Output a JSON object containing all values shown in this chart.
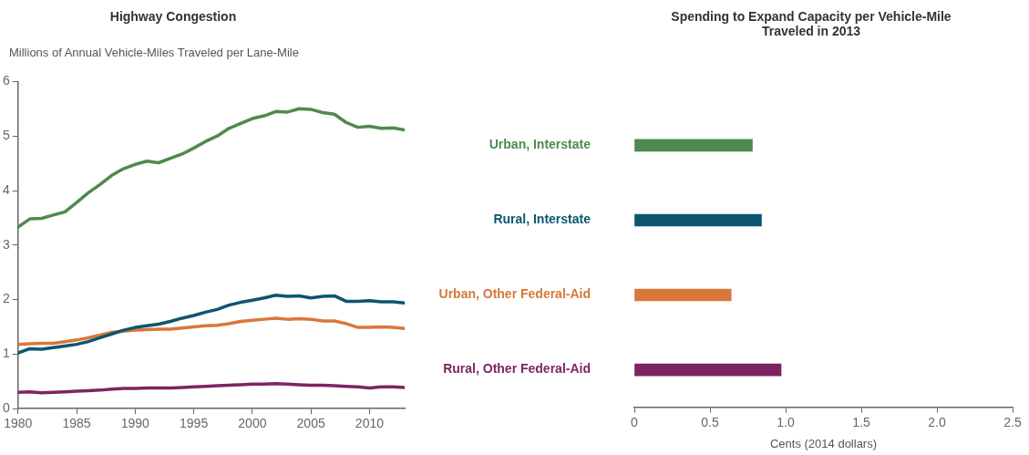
{
  "chart_data": [
    {
      "type": "line",
      "title": "Highway Congestion",
      "ylabel": "Millions of Annual Vehicle-Miles Traveled per Lane-Mile",
      "x": [
        1980,
        1981,
        1982,
        1983,
        1984,
        1985,
        1986,
        1987,
        1988,
        1989,
        1990,
        1991,
        1992,
        1993,
        1994,
        1995,
        1996,
        1997,
        1998,
        1999,
        2000,
        2001,
        2002,
        2003,
        2004,
        2005,
        2006,
        2007,
        2008,
        2009,
        2010,
        2011,
        2012,
        2013
      ],
      "series": [
        {
          "color": "#4e8a4e",
          "values": [
            3.33,
            3.48,
            3.49,
            3.55,
            3.61,
            3.78,
            3.96,
            4.11,
            4.28,
            4.4,
            4.48,
            4.54,
            4.51,
            4.59,
            4.67,
            4.78,
            4.9,
            5.0,
            5.14,
            5.23,
            5.32,
            5.37,
            5.45,
            5.44,
            5.5,
            5.49,
            5.43,
            5.4,
            5.25,
            5.16,
            5.18,
            5.14,
            5.15,
            5.11
          ]
        },
        {
          "color": "#0d5571",
          "values": [
            1.02,
            1.1,
            1.09,
            1.12,
            1.15,
            1.18,
            1.23,
            1.3,
            1.37,
            1.44,
            1.49,
            1.52,
            1.55,
            1.6,
            1.66,
            1.71,
            1.77,
            1.82,
            1.9,
            1.95,
            1.99,
            2.03,
            2.08,
            2.06,
            2.07,
            2.03,
            2.06,
            2.07,
            1.97,
            1.97,
            1.98,
            1.96,
            1.96,
            1.94
          ]
        },
        {
          "color": "#d9773a",
          "values": [
            1.18,
            1.19,
            1.2,
            1.2,
            1.23,
            1.26,
            1.3,
            1.35,
            1.4,
            1.42,
            1.44,
            1.45,
            1.46,
            1.46,
            1.48,
            1.5,
            1.52,
            1.53,
            1.56,
            1.6,
            1.62,
            1.64,
            1.66,
            1.64,
            1.65,
            1.64,
            1.61,
            1.61,
            1.56,
            1.49,
            1.49,
            1.5,
            1.49,
            1.47
          ]
        },
        {
          "color": "#7d2462",
          "values": [
            0.3,
            0.31,
            0.29,
            0.3,
            0.31,
            0.32,
            0.33,
            0.34,
            0.36,
            0.37,
            0.37,
            0.38,
            0.38,
            0.38,
            0.39,
            0.4,
            0.41,
            0.42,
            0.43,
            0.44,
            0.45,
            0.45,
            0.46,
            0.45,
            0.44,
            0.43,
            0.43,
            0.42,
            0.41,
            0.4,
            0.38,
            0.4,
            0.4,
            0.39
          ]
        }
      ],
      "xlim": [
        1980,
        2013
      ],
      "xticks": [
        1980,
        1985,
        1990,
        1995,
        2000,
        2005,
        2010
      ],
      "ylim": [
        0,
        6
      ],
      "yticks": [
        0,
        1,
        2,
        3,
        4,
        5,
        6
      ],
      "grid": false,
      "legend": false
    },
    {
      "type": "bar",
      "orientation": "horizontal",
      "title": "Spending to Expand Capacity per Vehicle-Mile Traveled in 2013",
      "xlabel": "Cents (2014 dollars)",
      "categories": [
        "Urban, Interstate",
        "Rural, Interstate",
        "Urban, Other Federal-Aid",
        "Rural, Other Federal-Aid"
      ],
      "values": [
        0.78,
        0.84,
        0.64,
        0.97
      ],
      "colors": [
        "#4e8a4e",
        "#0d5571",
        "#d9773a",
        "#7d2462"
      ],
      "xlim": [
        0,
        2.5
      ],
      "xticks": [
        0,
        0.5,
        {
          "value": 1,
          "label": "1.0"
        },
        1.5,
        {
          "value": 2,
          "label": "2.0"
        },
        2.5
      ],
      "grid": false,
      "legend": false
    }
  ]
}
